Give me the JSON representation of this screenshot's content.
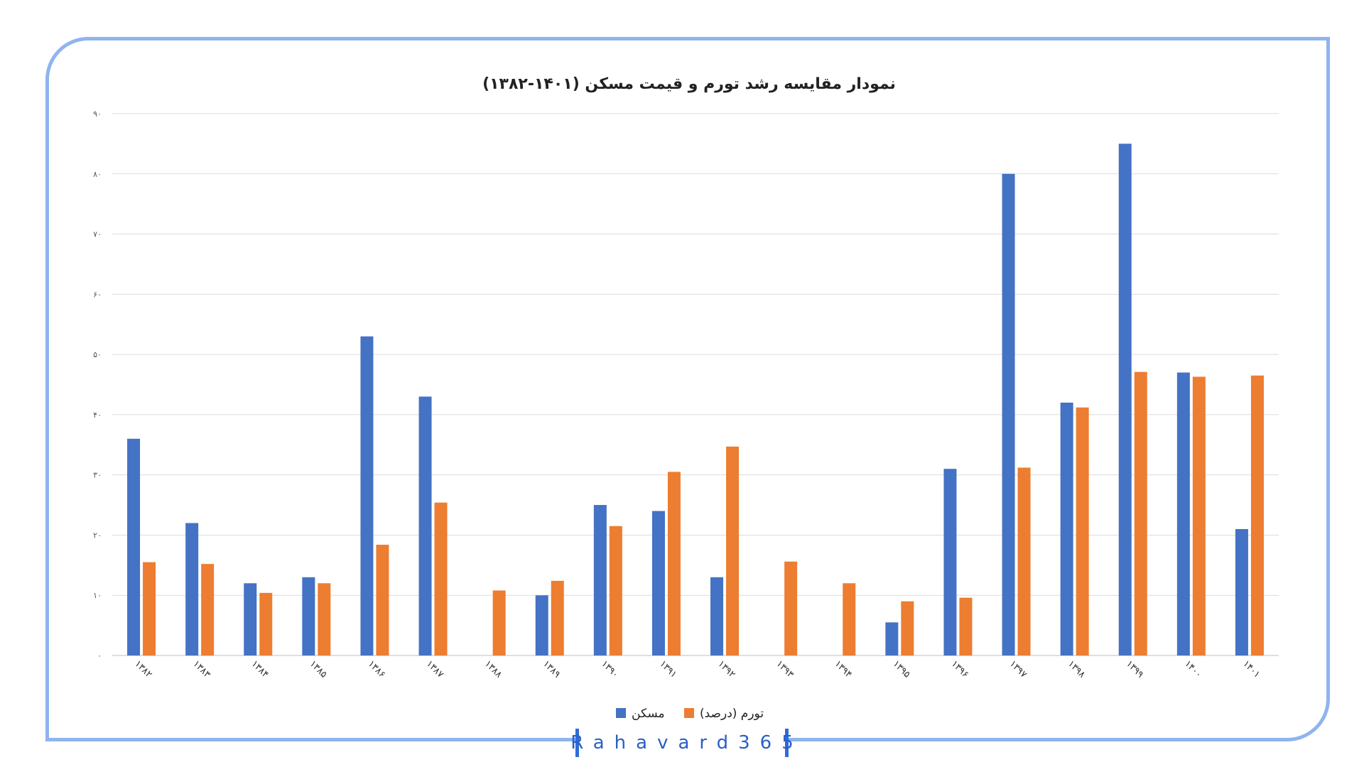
{
  "brand": {
    "text": "Rahavard365"
  },
  "chart_data": {
    "type": "bar",
    "title": "نمودار مقایسه رشد تورم و قیمت مسکن (۱۴۰۱-۱۳۸۲)",
    "xlabel": "",
    "ylabel": "",
    "ylim": [
      0,
      90
    ],
    "yticks": [
      0,
      10,
      20,
      30,
      40,
      50,
      60,
      70,
      80,
      90
    ],
    "ytick_labels": [
      "۰",
      "۱۰",
      "۲۰",
      "۳۰",
      "۴۰",
      "۵۰",
      "۶۰",
      "۷۰",
      "۸۰",
      "۹۰"
    ],
    "grid": true,
    "legend_position": "bottom-center",
    "categories": [
      "۱۳۸۲",
      "۱۳۸۳",
      "۱۳۸۴",
      "۱۳۸۵",
      "۱۳۸۶",
      "۱۳۸۷",
      "۱۳۸۸",
      "۱۳۸۹",
      "۱۳۹۰",
      "۱۳۹۱",
      "۱۳۹۲",
      "۱۳۹۳",
      "۱۳۹۴",
      "۱۳۹۵",
      "۱۳۹۶",
      "۱۳۹۷",
      "۱۳۹۸",
      "۱۳۹۹",
      "۱۴۰۰",
      "۱۴۰۱"
    ],
    "series": [
      {
        "name": "مسکن",
        "color": "#4472c4",
        "values": [
          36,
          22,
          12,
          13,
          53,
          43,
          null,
          10,
          25,
          24,
          13,
          null,
          null,
          5.5,
          31,
          80,
          42,
          85,
          47,
          21
        ]
      },
      {
        "name": "تورم (درصد)",
        "color": "#ed7d31",
        "values": [
          15.5,
          15.2,
          10.4,
          12,
          18.4,
          25.4,
          10.8,
          12.4,
          21.5,
          30.5,
          34.7,
          15.6,
          12,
          9,
          9.6,
          31.2,
          41.2,
          47.1,
          46.3,
          46.5
        ]
      }
    ]
  }
}
